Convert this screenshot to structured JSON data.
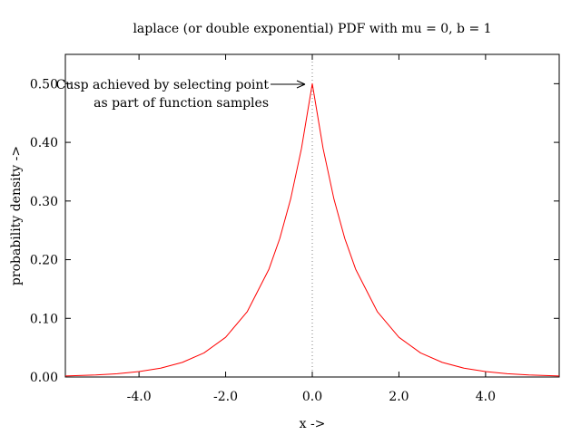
{
  "chart_data": {
    "type": "line",
    "title": "laplace (or double exponential) PDF with mu = 0, b = 1",
    "xlabel": "x ->",
    "ylabel": "probability density ->",
    "xlim": [
      -5.7,
      5.7
    ],
    "ylim": [
      0.0,
      0.55
    ],
    "x_ticks": [
      -4.0,
      -2.0,
      0.0,
      2.0,
      4.0
    ],
    "x_tick_labels": [
      "-4.0",
      "-2.0",
      "0.0",
      "2.0",
      "4.0"
    ],
    "y_ticks": [
      0.0,
      0.1,
      0.2,
      0.3,
      0.4,
      0.5
    ],
    "y_tick_labels": [
      "0.00",
      "0.10",
      "0.20",
      "0.30",
      "0.40",
      "0.50"
    ],
    "grid": false,
    "legend": "none",
    "series": [
      {
        "color": "#ff0000",
        "x": [
          -5.7,
          -5.0,
          -4.5,
          -4.0,
          -3.5,
          -3.0,
          -2.5,
          -2.0,
          -1.5,
          -1.0,
          -0.75,
          -0.5,
          -0.25,
          0.0,
          0.25,
          0.5,
          0.75,
          1.0,
          1.5,
          2.0,
          2.5,
          3.0,
          3.5,
          4.0,
          4.5,
          5.0,
          5.7
        ],
        "y": [
          0.0017,
          0.0034,
          0.0056,
          0.0092,
          0.0151,
          0.0249,
          0.041,
          0.0677,
          0.1116,
          0.1839,
          0.2362,
          0.3033,
          0.3894,
          0.5,
          0.3894,
          0.3033,
          0.2362,
          0.1839,
          0.1116,
          0.0677,
          0.041,
          0.0249,
          0.0151,
          0.0092,
          0.0056,
          0.0034,
          0.0017
        ]
      }
    ],
    "reference_line": {
      "x": 0.0,
      "color": "#808080",
      "style": "dotted"
    },
    "annotation": {
      "lines": [
        "Cusp achieved by selecting point",
        "as part of function samples"
      ],
      "arrow_target": {
        "x": 0.0,
        "y": 0.5
      }
    }
  }
}
